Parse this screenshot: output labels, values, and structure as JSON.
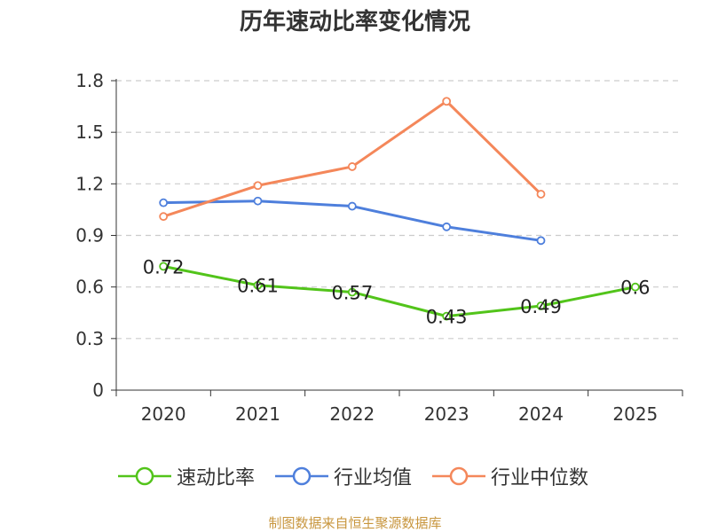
{
  "chart_data": {
    "type": "line",
    "title": "历年速动比率变化情况",
    "categories": [
      "2020",
      "2021",
      "2022",
      "2023",
      "2024",
      "2025"
    ],
    "ylim": [
      0,
      1.8
    ],
    "yticks": [
      "0",
      "0.3",
      "0.6",
      "0.9",
      "1.2",
      "1.5",
      "1.8"
    ],
    "grid": true,
    "legend_position": "bottom",
    "series": [
      {
        "name": "速动比率",
        "color": "#52c41a",
        "values": [
          0.72,
          0.61,
          0.57,
          0.43,
          0.49,
          0.6
        ],
        "labels": [
          "0.72",
          "0.61",
          "0.57",
          "0.43",
          "0.49",
          "0.6"
        ]
      },
      {
        "name": "行业均值",
        "color": "#4e7fdc",
        "values": [
          1.09,
          1.1,
          1.07,
          0.95,
          0.87,
          null
        ]
      },
      {
        "name": "行业中位数",
        "color": "#f4875a",
        "values": [
          1.01,
          1.19,
          1.3,
          1.68,
          1.14,
          null
        ]
      }
    ]
  },
  "source": "制图数据来自恒生聚源数据库"
}
